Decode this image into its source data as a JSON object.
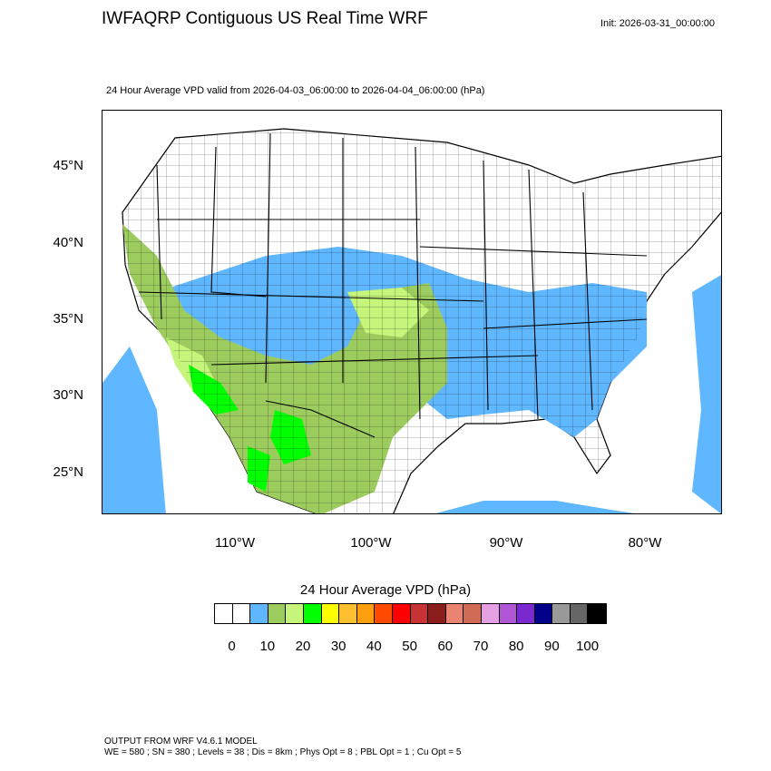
{
  "header": {
    "title": "IWFAQRP Contiguous US Real Time WRF",
    "init": "Init: 2026-03-31_00:00:00",
    "subtitle": "24 Hour Average VPD valid from 2026-04-03_06:00:00 to 2026-04-04_06:00:00   (hPa)"
  },
  "map": {
    "lat_labels": [
      "45°N",
      "40°N",
      "35°N",
      "30°N",
      "25°N"
    ],
    "lon_labels": [
      "110°W",
      "100°W",
      "90°W",
      "80°W"
    ],
    "fill_colors": {
      "ocean_low": "#5fb7ff",
      "vpd_10_15": "#5fb7ff",
      "vpd_15_20": "#9ccb5e",
      "vpd_20_25": "#c5f57a",
      "vpd_25_30": "#00ff00",
      "background": "#ffffff"
    }
  },
  "colorbar": {
    "title": "24 Hour Average VPD  (hPa)",
    "colors": [
      "#ffffff",
      "#ffffff",
      "#5fb7ff",
      "#9ccb5e",
      "#c5f57a",
      "#00ff00",
      "#ffff00",
      "#ffbf2f",
      "#ff9f10",
      "#ff4a00",
      "#ff0000",
      "#c83232",
      "#8c1d1d",
      "#e98470",
      "#d06c55",
      "#e4a0e3",
      "#b056d6",
      "#7b28d0",
      "#000088",
      "#999999",
      "#666666",
      "#000000"
    ],
    "labels": [
      "0",
      "10",
      "20",
      "30",
      "40",
      "50",
      "60",
      "70",
      "80",
      "90",
      "100"
    ]
  },
  "footer": {
    "line1": "OUTPUT FROM WRF V4.6.1 MODEL",
    "line2": "WE = 580 ; SN = 380 ; Levels = 38 ; Dis = 8km ; Phys Opt = 8 ; PBL Opt = 1 ; Cu Opt = 5"
  }
}
